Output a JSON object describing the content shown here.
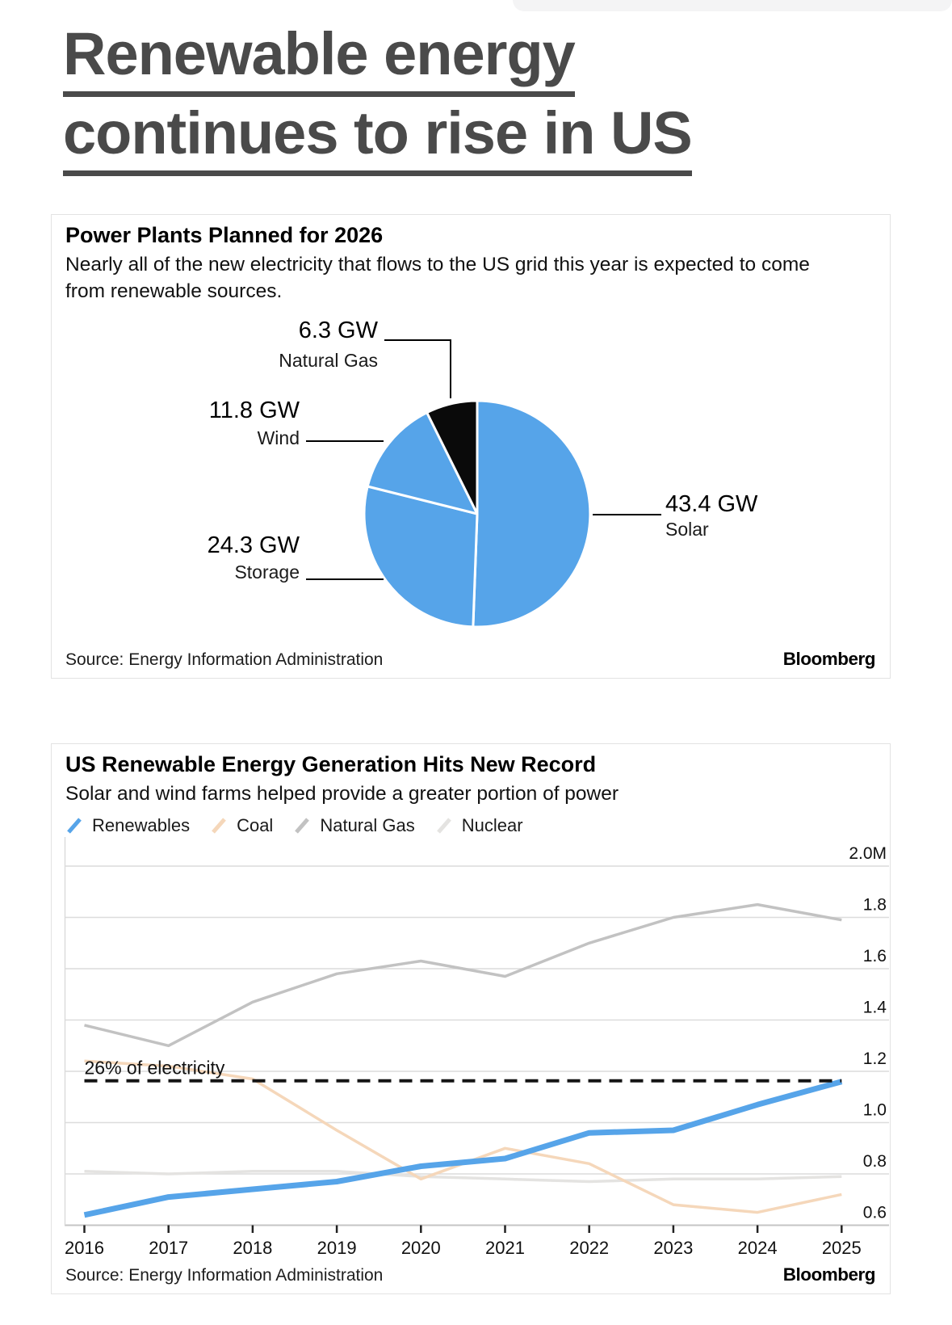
{
  "headline": {
    "line1": "Renewable energy",
    "line2": "continues to rise in US",
    "text_color": "#4a4a4a"
  },
  "chart_data": [
    {
      "id": "power-plants-pie",
      "type": "pie",
      "title": "Power Plants Planned for 2026",
      "subtitle": "Nearly all of the new electricity that flows to the US grid this year is expected to come from renewable sources.",
      "unit": "GW",
      "slices": [
        {
          "label": "Solar",
          "value_gw": 43.4,
          "value_label": "43.4 GW",
          "color": "#56a4e9"
        },
        {
          "label": "Storage",
          "value_gw": 24.3,
          "value_label": "24.3 GW",
          "color": "#56a4e9"
        },
        {
          "label": "Wind",
          "value_gw": 11.8,
          "value_label": "11.8 GW",
          "color": "#56a4e9"
        },
        {
          "label": "Natural Gas",
          "value_gw": 6.3,
          "value_label": "6.3 GW",
          "color": "#0a0a0a"
        }
      ],
      "source": "Source: Energy Information Administration",
      "brand": "Bloomberg"
    },
    {
      "id": "us-generation-lines",
      "type": "line",
      "title": "US Renewable Energy Generation Hits New Record",
      "subtitle": "Solar and wind farms helped provide a greater portion of power",
      "x": [
        2016,
        2017,
        2018,
        2019,
        2020,
        2021,
        2022,
        2023,
        2024,
        2025
      ],
      "series": [
        {
          "name": "Renewables",
          "color": "#56a4e9",
          "width": 7,
          "values": [
            0.64,
            0.71,
            0.74,
            0.77,
            0.83,
            0.86,
            0.96,
            0.97,
            1.07,
            1.16
          ]
        },
        {
          "name": "Coal",
          "color": "#f5d7ba",
          "width": 3.5,
          "values": [
            1.24,
            1.22,
            1.17,
            0.97,
            0.78,
            0.9,
            0.84,
            0.68,
            0.65,
            0.72
          ]
        },
        {
          "name": "Natural Gas",
          "color": "#c2c2c2",
          "width": 3.5,
          "values": [
            1.38,
            1.3,
            1.47,
            1.58,
            1.63,
            1.57,
            1.7,
            1.8,
            1.85,
            1.79
          ]
        },
        {
          "name": "Nuclear",
          "color": "#e4e3e1",
          "width": 3.5,
          "values": [
            0.81,
            0.8,
            0.81,
            0.81,
            0.79,
            0.78,
            0.77,
            0.78,
            0.78,
            0.79
          ]
        }
      ],
      "annotation": {
        "label": "26% of electricity",
        "value": 1.163,
        "style": "dashed",
        "color": "#151515"
      },
      "ylim": [
        0.6,
        2.0
      ],
      "ytick_values": [
        2.0,
        1.8,
        1.6,
        1.4,
        1.2,
        1.0,
        0.8,
        0.6
      ],
      "ytick_labels": [
        "2.0M",
        "1.8",
        "1.6",
        "1.4",
        "1.2",
        "1.0",
        "0.8",
        "0.6"
      ],
      "grid": true,
      "legend_position": "top",
      "source": "Source: Energy Information Administration",
      "brand": "Bloomberg"
    }
  ]
}
